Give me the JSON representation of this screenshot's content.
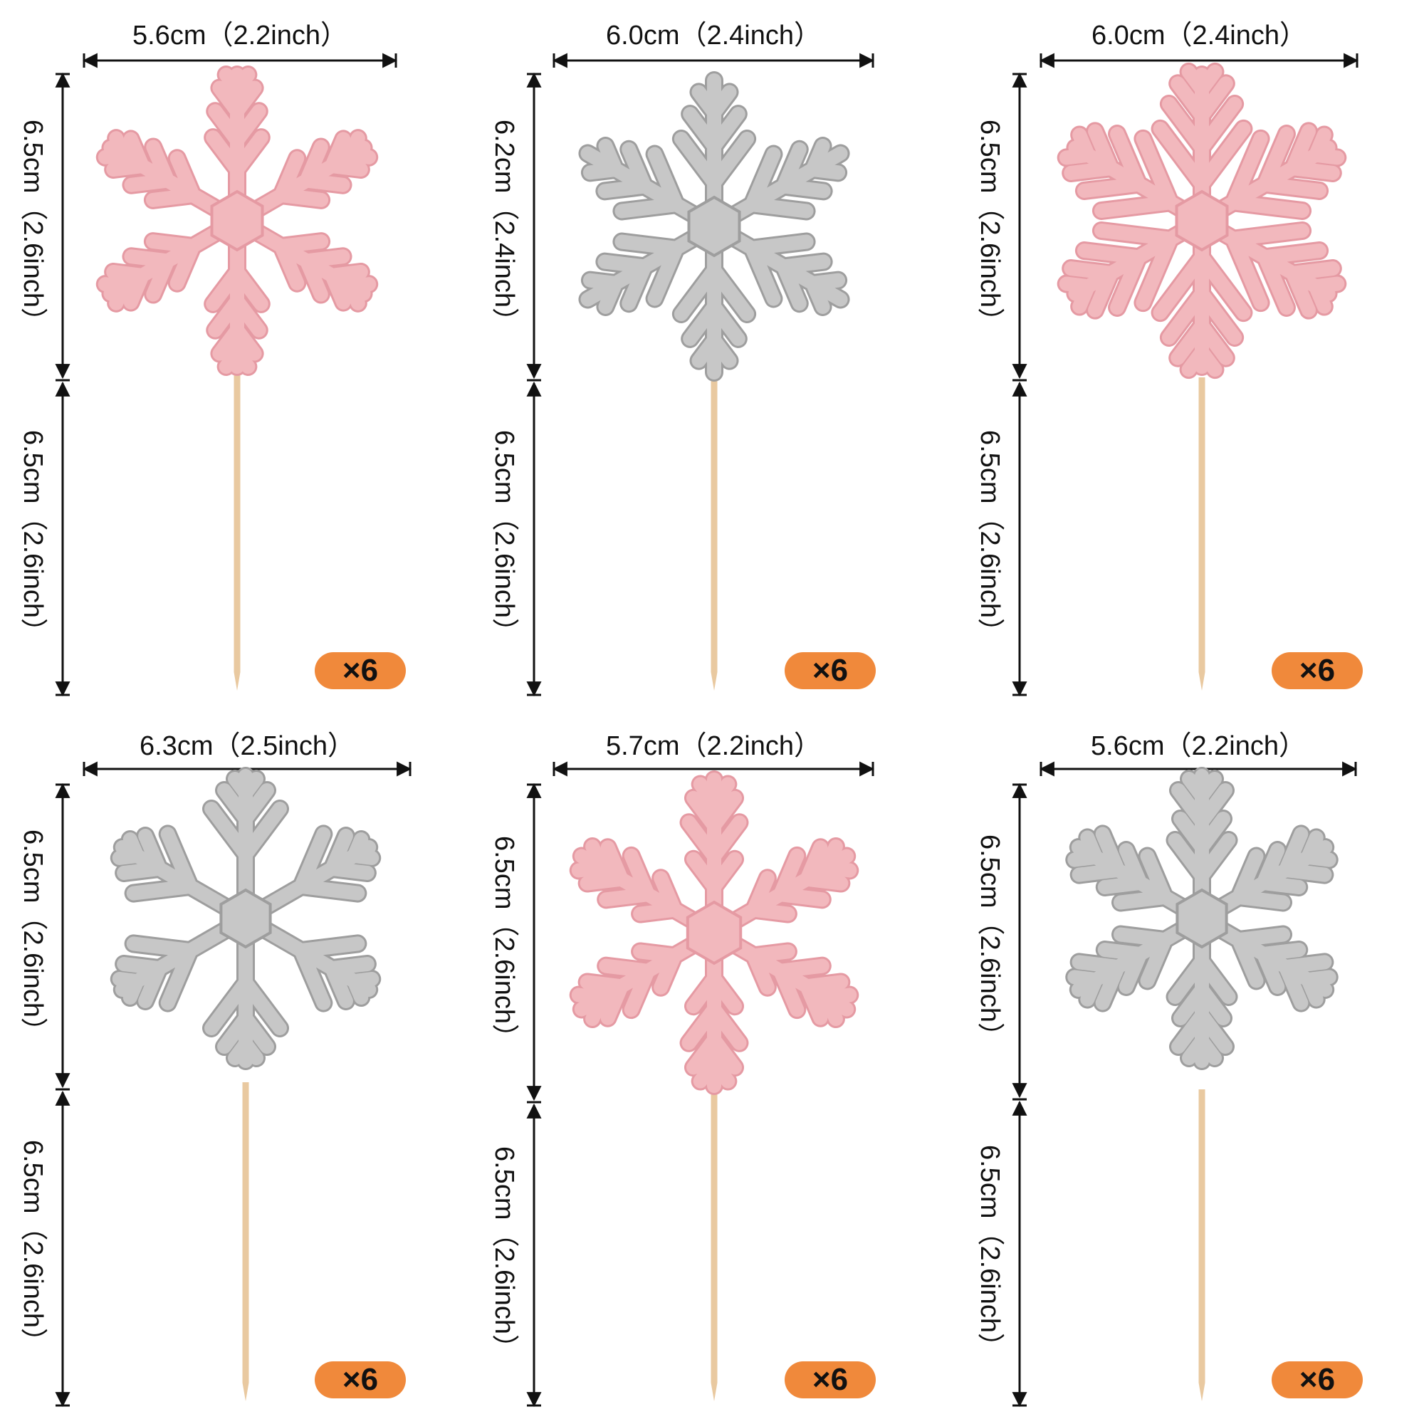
{
  "colors": {
    "pink": "#f2b8bd",
    "pink_dark": "#e59aa3",
    "silver": "#c7c7c7",
    "silver_dark": "#9e9e9e",
    "stick": "#e9c9a0",
    "badge": "#f0893b"
  },
  "toppers": [
    {
      "color": "pink",
      "width_label": "5.6cm（2.2inch）",
      "top_height_label": "6.5cm（2.6inch）",
      "stick_height_label": "6.5cm（2.6inch）",
      "qty": "×6"
    },
    {
      "color": "silver",
      "width_label": "6.0cm（2.4inch）",
      "top_height_label": "6.2cm（2.4inch）",
      "stick_height_label": "6.5cm（2.6inch）",
      "qty": "×6"
    },
    {
      "color": "pink",
      "width_label": "6.0cm（2.4inch）",
      "top_height_label": "6.5cm（2.6inch）",
      "stick_height_label": "6.5cm（2.6inch）",
      "qty": "×6"
    },
    {
      "color": "silver",
      "width_label": "6.3cm（2.5inch）",
      "top_height_label": "6.5cm（2.6inch）",
      "stick_height_label": "6.5cm（2.6inch）",
      "qty": "×6"
    },
    {
      "color": "pink",
      "width_label": "5.7cm（2.2inch）",
      "top_height_label": "6.5cm（2.6inch）",
      "stick_height_label": "6.5cm（2.6inch）",
      "qty": "×6"
    },
    {
      "color": "silver",
      "width_label": "5.6cm（2.2inch）",
      "top_height_label": "6.5cm（2.6inch）",
      "stick_height_label": "6.5cm（2.6inch）",
      "qty": "×6"
    }
  ]
}
